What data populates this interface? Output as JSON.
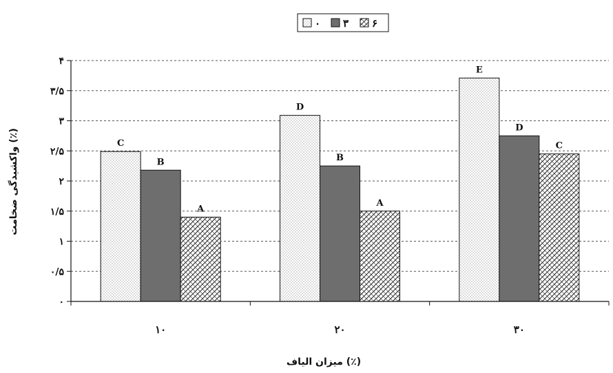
{
  "chart_data": {
    "type": "bar",
    "categories": [
      "۱۰",
      "۲۰",
      "۳۰"
    ],
    "series": [
      {
        "name": "۰",
        "values": [
          2.49,
          3.09,
          3.71
        ],
        "labels": [
          "C",
          "D",
          "E"
        ],
        "pattern": "dots"
      },
      {
        "name": "۳",
        "values": [
          2.18,
          2.25,
          2.75
        ],
        "labels": [
          "B",
          "B",
          "D"
        ],
        "pattern": "solid"
      },
      {
        "name": "۶",
        "values": [
          1.4,
          1.5,
          2.45
        ],
        "labels": [
          "A",
          "A",
          "C"
        ],
        "pattern": "weave"
      }
    ],
    "ylim": [
      0,
      4
    ],
    "yticks": [
      0,
      0.5,
      1,
      1.5,
      2,
      2.5,
      3,
      3.5,
      4
    ],
    "ytick_labels": [
      "۰",
      "۰/۵",
      "۱",
      "۱/۵",
      "۲",
      "۲/۵",
      "۳",
      "۳/۵",
      "۴"
    ],
    "xlabel": "میزان الیاف (٪)",
    "ylabel": "واکشیدگی ضخامت (٪)",
    "grid": true,
    "legend_position": "top-center",
    "colors": {
      "solid_fill": "#6e6e6e",
      "grid": "#555555",
      "bar_edge": "#111111"
    }
  }
}
